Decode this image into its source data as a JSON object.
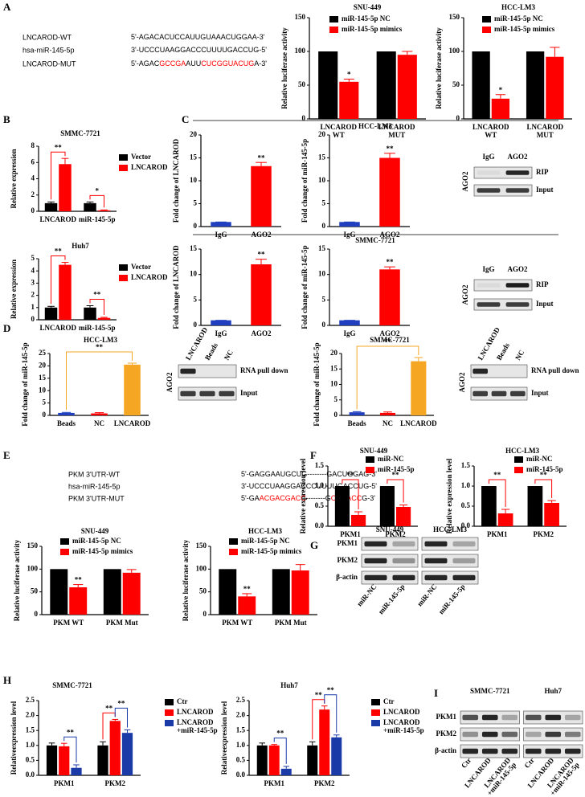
{
  "panel_labels": [
    "A",
    "B",
    "C",
    "D",
    "E",
    "F",
    "G",
    "H",
    "I"
  ],
  "sequences": [
    [
      {
        "name": "LNCAROD-WT",
        "segments": [
          {
            "text": "5'-AGACACUCCAUUGUAAACUGGAA-3'",
            "color": "#000000"
          }
        ]
      },
      {
        "name": "hsa-miR-145-5p",
        "segments": [
          {
            "text": "3'-UCCCUAAGGACCCUUUUGACCUG-5'",
            "color": "#000000"
          }
        ]
      },
      {
        "name": "LNCAROD-MUT",
        "segments": [
          {
            "text": "5'-AGAC",
            "color": "#000000"
          },
          {
            "text": "GCCGA",
            "color": "#ff0000"
          },
          {
            "text": "AUU",
            "color": "#000000"
          },
          {
            "text": "CUCGGUACUG",
            "color": "#ff0000"
          },
          {
            "text": "A-3'",
            "color": "#000000"
          }
        ]
      }
    ],
    [
      {
        "name": "PKM 3'UTR-WT",
        "segments": [
          {
            "text": "5'-GAGGAAUGCUG--------GACUGGAG-3'",
            "color": "#000000"
          }
        ]
      },
      {
        "name": "hsa-miR-145-5p",
        "segments": [
          {
            "text": "3'-UCCCUAAGGACCCUUUUGACCUG-5'",
            "color": "#000000"
          }
        ]
      },
      {
        "name": "PKM 3'UTR-MUT",
        "segments": [
          {
            "text": "5'-GA",
            "color": "#000000"
          },
          {
            "text": "ACGACGACC",
            "color": "#ff0000"
          },
          {
            "text": "--------G",
            "color": "#000000"
          },
          {
            "text": "CGAACC",
            "color": "#ff0000"
          },
          {
            "text": "G-3'",
            "color": "#000000"
          }
        ]
      }
    ]
  ],
  "group_titles": [
    "HCC-LM3",
    "SMMC-7721"
  ],
  "chart_data": [
    {
      "type": "bar",
      "title": "SNU-449",
      "y_label": "Relative luciferase activity",
      "categories": [
        "LNCAROD WT",
        "LNCAROD MUT"
      ],
      "ylim": [
        0,
        150
      ],
      "yticks": [
        0,
        50,
        100,
        150
      ],
      "series": [
        {
          "name": "miR-145-5p NC",
          "color": "#000000",
          "values": [
            100,
            100
          ]
        },
        {
          "name": "miR-145-5p mimics",
          "color": "#ff0000",
          "values": [
            55,
            95
          ],
          "errors": [
            4,
            5
          ],
          "sig": [
            "*",
            null
          ]
        }
      ]
    },
    {
      "type": "bar",
      "title": "HCC-LM3",
      "y_label": "Relative luciferase activity",
      "categories": [
        "LNCAROD WT",
        "LNCAROD MUT"
      ],
      "ylim": [
        0,
        150
      ],
      "yticks": [
        0,
        50,
        100,
        150
      ],
      "series": [
        {
          "name": "miR-145-5p NC",
          "color": "#000000",
          "values": [
            100,
            100
          ]
        },
        {
          "name": "miR-145-5p mimics",
          "color": "#ff0000",
          "values": [
            30,
            92
          ],
          "errors": [
            6,
            14
          ],
          "sig": [
            "*",
            null
          ]
        }
      ]
    },
    {
      "type": "bar",
      "title": "SMMC-7721",
      "y_label": "Relative expression",
      "categories": [
        "LNCAROD",
        "miR-145-5p"
      ],
      "ylim": [
        0,
        8
      ],
      "yticks": [
        0,
        2,
        4,
        6,
        8
      ],
      "series": [
        {
          "name": "Vector",
          "color": "#000000",
          "values": [
            1.0,
            1.0
          ],
          "errors": [
            0.15,
            0.15
          ]
        },
        {
          "name": "LNCAROD",
          "color": "#ff0000",
          "values": [
            5.8,
            0.12
          ],
          "errors": [
            0.7,
            0.05
          ],
          "sig": [
            "**",
            "*"
          ]
        }
      ]
    },
    {
      "type": "bar",
      "title": "Huh7",
      "y_label": "Relative expression",
      "categories": [
        "LNCAROD",
        "miR-145-5p"
      ],
      "ylim": [
        0,
        5
      ],
      "yticks": [
        0,
        1,
        2,
        3,
        4,
        5
      ],
      "series": [
        {
          "name": "Vector",
          "color": "#000000",
          "values": [
            1.0,
            1.0
          ],
          "errors": [
            0.1,
            0.15
          ]
        },
        {
          "name": "LNCAROD",
          "color": "#ff0000",
          "values": [
            4.5,
            0.15
          ],
          "errors": [
            0.2,
            0.05
          ],
          "sig": [
            "**",
            "**"
          ]
        }
      ]
    },
    {
      "type": "bar",
      "y_label": "Fold change of LNCAROD",
      "categories": [
        "IgG",
        "AGO2"
      ],
      "ylim": [
        0,
        20
      ],
      "yticks": [
        0,
        5,
        10,
        15,
        20
      ],
      "series": [
        {
          "colors": [
            "#1f3fbf",
            "#ff0000"
          ],
          "values": [
            1,
            13.2
          ],
          "errors": [
            0,
            0.8
          ],
          "sig": [
            null,
            "**"
          ]
        }
      ]
    },
    {
      "type": "bar",
      "y_label": "Fold change of miR-145-5p",
      "categories": [
        "IgG",
        "AGO2"
      ],
      "ylim": [
        0,
        20
      ],
      "yticks": [
        0,
        5,
        10,
        15,
        20
      ],
      "series": [
        {
          "colors": [
            "#1f3fbf",
            "#ff0000"
          ],
          "values": [
            1,
            15
          ],
          "errors": [
            0,
            1
          ],
          "sig": [
            null,
            "**"
          ]
        }
      ]
    },
    {
      "type": "bar",
      "y_label": "Fold change of LNCAROD",
      "categories": [
        "IgG",
        "AGO2"
      ],
      "ylim": [
        0,
        15
      ],
      "yticks": [
        0,
        5,
        10,
        15
      ],
      "series": [
        {
          "colors": [
            "#1f3fbf",
            "#ff0000"
          ],
          "values": [
            1,
            12
          ],
          "errors": [
            0,
            1
          ],
          "sig": [
            null,
            "**"
          ]
        }
      ]
    },
    {
      "type": "bar",
      "y_label": "Fold change of miR-145-5p",
      "categories": [
        "IgG",
        "AGO2"
      ],
      "ylim": [
        0,
        15
      ],
      "yticks": [
        0,
        5,
        10,
        15
      ],
      "series": [
        {
          "colors": [
            "#1f3fbf",
            "#ff0000"
          ],
          "values": [
            1,
            11
          ],
          "errors": [
            0,
            0.5
          ],
          "sig": [
            null,
            "**"
          ]
        }
      ]
    },
    {
      "type": "bar",
      "title": "HCC-LM3",
      "y_label": "Fold change of miR-145-5p",
      "categories": [
        "Beads",
        "NC",
        "LNCAROD"
      ],
      "ylim": [
        0,
        25
      ],
      "yticks": [
        0,
        5,
        10,
        15,
        20,
        25
      ],
      "series": [
        {
          "colors": [
            "#1f3fbf",
            "#ff0000",
            "#f5a623"
          ],
          "values": [
            1,
            0.8,
            20.5
          ],
          "errors": [
            0.2,
            0.3,
            0.6
          ],
          "sig": [
            null,
            null,
            "**"
          ]
        }
      ]
    },
    {
      "type": "bar",
      "title": "SMMC-7721",
      "y_label": "Fold change of miR-145-5p",
      "categories": [
        "Beads",
        "NC",
        "LNCAROD"
      ],
      "ylim": [
        0,
        20
      ],
      "yticks": [
        0,
        5,
        10,
        15,
        20
      ],
      "series": [
        {
          "colors": [
            "#1f3fbf",
            "#ff0000",
            "#f5a623"
          ],
          "values": [
            1,
            0.8,
            17.5
          ],
          "errors": [
            0.2,
            0.3,
            1.2
          ],
          "sig": [
            null,
            null,
            "**"
          ]
        }
      ]
    },
    {
      "type": "bar",
      "title": "SNU-449",
      "y_label": "Relative luciferase activity",
      "categories": [
        "PKM WT",
        "PKM Mut"
      ],
      "ylim": [
        0,
        150
      ],
      "yticks": [
        0,
        50,
        100,
        150
      ],
      "series": [
        {
          "name": "miR-145-5p NC",
          "color": "#000000",
          "values": [
            100,
            100
          ]
        },
        {
          "name": "miR-145-5p mimics",
          "color": "#ff0000",
          "values": [
            60,
            92
          ],
          "errors": [
            6,
            7
          ],
          "sig": [
            "**",
            null
          ]
        }
      ]
    },
    {
      "type": "bar",
      "title": "HCC-LM3",
      "y_label": "Relative luciferase activity",
      "categories": [
        "PKM WT",
        "PKM Mut"
      ],
      "ylim": [
        0,
        150
      ],
      "yticks": [
        0,
        50,
        100,
        150
      ],
      "series": [
        {
          "name": "miR-145-5p NC",
          "color": "#000000",
          "values": [
            100,
            100
          ]
        },
        {
          "name": "miR-145-5p mimics",
          "color": "#ff0000",
          "values": [
            40,
            97
          ],
          "errors": [
            6,
            13
          ],
          "sig": [
            "**",
            null
          ]
        }
      ]
    },
    {
      "type": "bar",
      "title": "SNU-449",
      "y_label": "Relative expression level",
      "categories": [
        "PKM1",
        "PKM2"
      ],
      "ylim": [
        0,
        1.5
      ],
      "yticks": [
        {
          "value": 0,
          "label": "0.0"
        },
        {
          "value": 0.5,
          "label": "0.5"
        },
        {
          "value": 1,
          "label": "1.0"
        },
        {
          "value": 1.5,
          "label": "1.5"
        }
      ],
      "series": [
        {
          "name": "miR-NC",
          "color": "#000000",
          "values": [
            1,
            1
          ]
        },
        {
          "name": "miR-145-5p",
          "color": "#ff0000",
          "values": [
            0.28,
            0.48
          ],
          "errors": [
            0.08,
            0.05
          ],
          "sig": [
            "**",
            "**"
          ]
        }
      ]
    },
    {
      "type": "bar",
      "title": "HCC-LM3",
      "y_label": "Relative expression level",
      "categories": [
        "PKM1",
        "PKM2"
      ],
      "ylim": [
        0,
        1.5
      ],
      "yticks": [
        {
          "value": 0,
          "label": "0.0"
        },
        {
          "value": 0.5,
          "label": "0.5"
        },
        {
          "value": 1,
          "label": "1.0"
        },
        {
          "value": 1.5,
          "label": "1.5"
        }
      ],
      "series": [
        {
          "name": "miR-NC",
          "color": "#000000",
          "values": [
            1,
            1
          ]
        },
        {
          "name": "miR-145-5p",
          "color": "#ff0000",
          "values": [
            0.32,
            0.58
          ],
          "errors": [
            0.1,
            0.06
          ],
          "sig": [
            "**",
            "**"
          ]
        }
      ]
    },
    {
      "type": "bar",
      "title": "SMMC-7721",
      "y_label": "Relativeexpression level",
      "categories": [
        "PKM1",
        "PKM2"
      ],
      "ylim": [
        0,
        2.5
      ],
      "yticks": [
        {
          "value": 0,
          "label": "0.0"
        },
        {
          "value": 0.5,
          "label": "0.5"
        },
        {
          "value": 1,
          "label": "1.0"
        },
        {
          "value": 1.5,
          "label": "1.5"
        },
        {
          "value": 2,
          "label": "2.0"
        },
        {
          "value": 2.5,
          "label": "2.5"
        }
      ],
      "series": [
        {
          "name": "Ctr",
          "color": "#000000",
          "values": [
            1.0,
            1.0
          ],
          "errors": [
            0.08,
            0.12
          ]
        },
        {
          "name": "LNCAROD",
          "color": "#ff0000",
          "values": [
            0.97,
            1.82
          ],
          "errors": [
            0.1,
            0.05
          ],
          "sig": [
            null,
            "**"
          ]
        },
        {
          "name": "LNCAROD +miR-145-5p",
          "color": "#1a3aa8",
          "values": [
            0.25,
            1.42
          ],
          "errors": [
            0.1,
            0.1
          ],
          "sig": [
            "**",
            "**"
          ]
        }
      ]
    },
    {
      "type": "bar",
      "title": "Huh7",
      "y_label": "Relativeexpression level",
      "categories": [
        "PKM1",
        "PKM2"
      ],
      "ylim": [
        0,
        2.5
      ],
      "yticks": [
        {
          "value": 0,
          "label": "0.0"
        },
        {
          "value": 0.5,
          "label": "0.5"
        },
        {
          "value": 1,
          "label": "1.0"
        },
        {
          "value": 1.5,
          "label": "1.5"
        },
        {
          "value": 2,
          "label": "2.0"
        },
        {
          "value": 2.5,
          "label": "2.5"
        }
      ],
      "series": [
        {
          "name": "Ctr",
          "color": "#000000",
          "values": [
            1.0,
            1.0
          ],
          "errors": [
            0.08,
            0.12
          ]
        },
        {
          "name": "LNCAROD",
          "color": "#ff0000",
          "values": [
            1.0,
            2.2
          ],
          "errors": [
            0.03,
            0.12
          ],
          "sig": [
            null,
            "**"
          ]
        },
        {
          "name": "LNCAROD +miR-145-5p",
          "color": "#1a3aa8",
          "values": [
            0.22,
            1.27
          ],
          "errors": [
            0.08,
            0.08
          ],
          "sig": [
            "**",
            "**"
          ]
        }
      ]
    }
  ],
  "blots": [
    {
      "lanes": [
        "IgG",
        "AGO2"
      ],
      "rows": [
        "RIP",
        "Input"
      ],
      "side": "AGO2"
    },
    {
      "lanes": [
        "IgG",
        "AGO2"
      ],
      "rows": [
        "RIP",
        "Input"
      ],
      "side": "AGO2"
    },
    {
      "lanes": [
        "LNCAROD",
        "Beads",
        "NC"
      ],
      "rows": [
        "RNA pull down",
        "Input"
      ],
      "side": "AGO2"
    },
    {
      "lanes": [
        "LNCAROD",
        "Beads",
        "NC"
      ],
      "rows": [
        "RNA pull down",
        "Input"
      ],
      "side": "AGO2"
    },
    {
      "groups": [
        "SNU-449",
        "HCC-LM3"
      ],
      "lanes": [
        "miR-NC",
        "miR-145-5p",
        "miR-NC",
        "miR-145-5p"
      ],
      "rows": [
        "PKM1",
        "PKM2",
        "β-actin"
      ]
    },
    {
      "groups": [
        "SMMC-7721",
        "Huh7"
      ],
      "lanes": [
        "Ctr",
        "LNCAROD",
        "LNCAROD +miR-145-5p",
        "Ctr",
        "LNCAROD",
        "LNCAROD +miR-145-5p"
      ],
      "rows": [
        "PKM1",
        "PKM2",
        "β-actin"
      ]
    }
  ]
}
